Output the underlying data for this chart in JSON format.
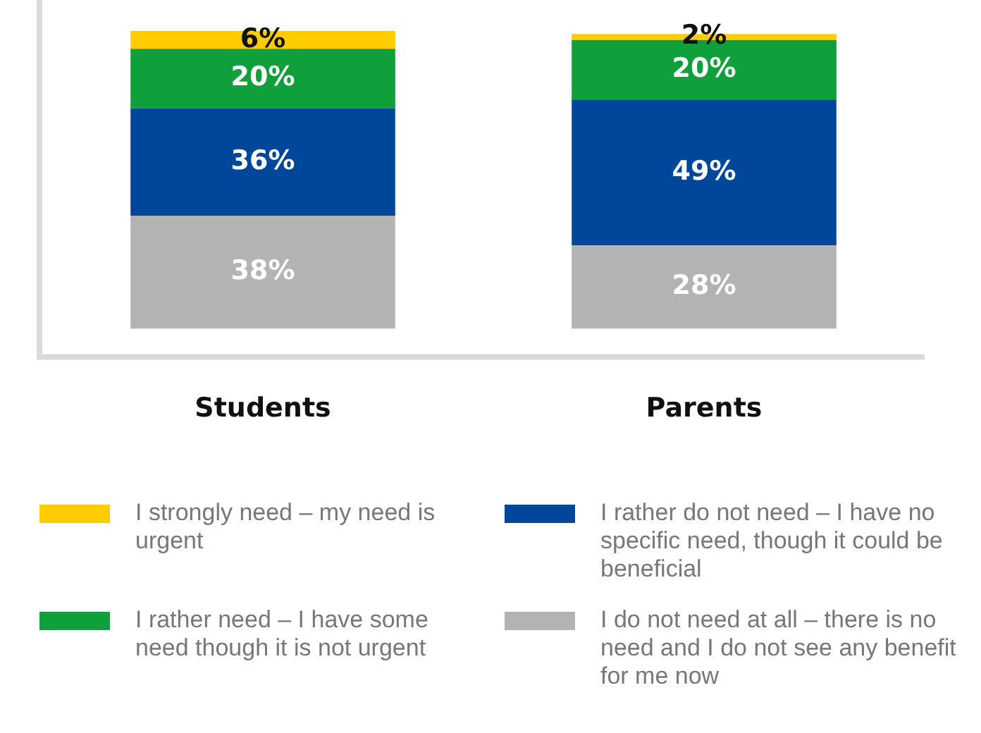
{
  "chart_data": {
    "type": "bar",
    "stacked": true,
    "legend": "bottom",
    "categories": [
      "Students",
      "Parents"
    ],
    "series": [
      {
        "name": "I do not need at all – there is no need and I do not see any benefit for me now",
        "color": "#b3b3b3",
        "values": [
          38,
          28
        ],
        "value_labels": [
          "38%",
          "28%"
        ]
      },
      {
        "name": "I rather do not need – I have no specific need, though it could be beneficial",
        "color": "#00479b",
        "values": [
          36,
          49
        ],
        "value_labels": [
          "36%",
          "49%"
        ]
      },
      {
        "name": "I rather need – I have some need though it is not urgent",
        "color": "#0fa03c",
        "values": [
          20,
          20
        ],
        "value_labels": [
          "20%",
          "20%"
        ]
      },
      {
        "name": "I strongly need – my need is urgent",
        "color": "#ffcc00",
        "values": [
          6,
          2
        ],
        "value_labels": [
          "6%",
          "2%"
        ]
      }
    ]
  }
}
